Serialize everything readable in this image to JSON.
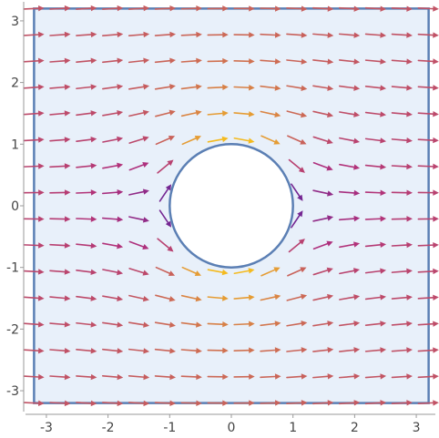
{
  "chart_data": {
    "type": "vector-field",
    "title": "",
    "xlabel": "",
    "ylabel": "",
    "xlim": [
      -3.25,
      3.25
    ],
    "ylim": [
      -3.25,
      3.25
    ],
    "x_ticks": [
      "-3",
      "-2",
      "-1",
      "0",
      "1",
      "2",
      "3"
    ],
    "y_ticks": [
      "-3",
      "-2",
      "-1",
      "0",
      "1",
      "2",
      "3"
    ],
    "x_tick_values": [
      -3,
      -2,
      -1,
      0,
      1,
      2,
      3
    ],
    "y_tick_values": [
      -3,
      -2,
      -1,
      0,
      1,
      2,
      3
    ],
    "region": {
      "shape": "square minus disk",
      "square_bounds": [
        -3.2,
        3.2
      ],
      "hole_center": [
        0,
        0
      ],
      "hole_radius": 1
    },
    "field": {
      "description": "potential flow past a cylinder",
      "u": "1 - (x^2 - y^2)/(x^2 + y^2)^2",
      "v": "-2xy/(x^2 + y^2)^2",
      "grid_start": -3.2,
      "grid_end": 3.2,
      "grid_count": 16
    },
    "color_scale": {
      "low": "#3a1ca8",
      "mid": "#b0307c",
      "high": "#f4ba1f",
      "magnitude_range": [
        0,
        1.6
      ]
    },
    "colors": {
      "region_fill": "#e8f0fa",
      "region_stroke": "#5b7fb4"
    },
    "grid": false,
    "legend": "none"
  }
}
